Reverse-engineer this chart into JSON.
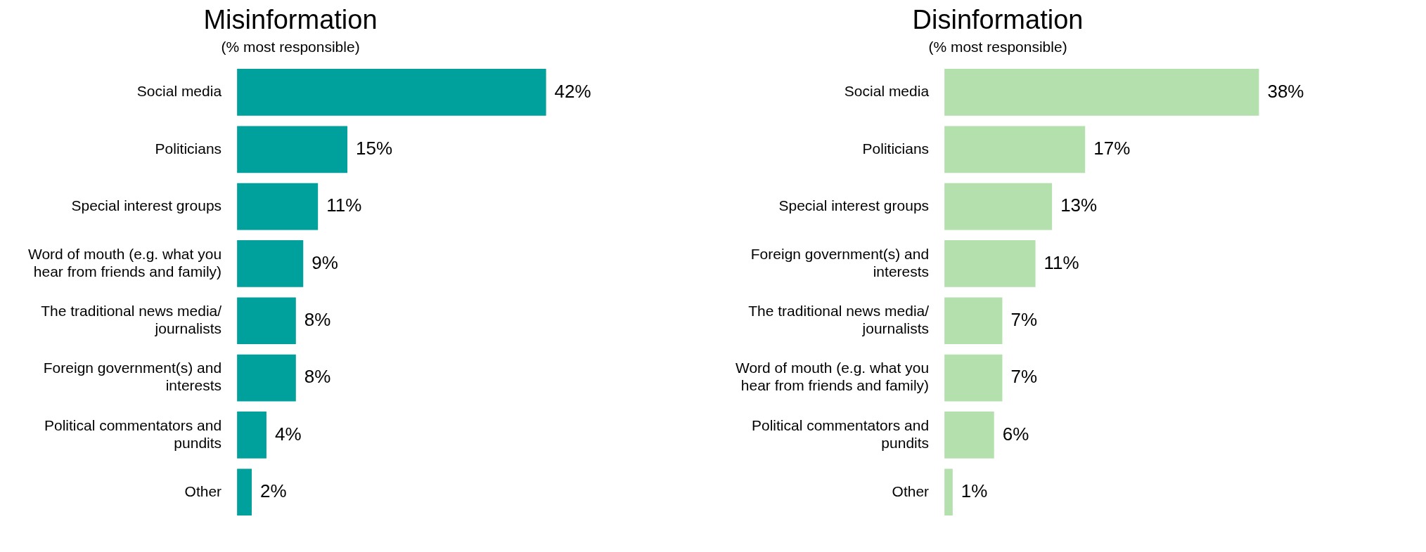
{
  "chart_data": [
    {
      "type": "bar",
      "orientation": "horizontal",
      "title": "Misinformation",
      "subtitle": "(% most responsible)",
      "categories": [
        "Social media",
        "Politicians",
        "Special interest groups",
        "Word of mouth (e.g. what you hear from friends and family)",
        "The traditional news media/journalists",
        "Foreign government(s) and interests",
        "Political commentators and pundits",
        "Other"
      ],
      "values": [
        42,
        15,
        11,
        9,
        8,
        8,
        4,
        2
      ],
      "value_labels": [
        "42%",
        "15%",
        "11%",
        "9%",
        "8%",
        "8%",
        "4%",
        "2%"
      ],
      "color": "#00a09d",
      "tick_labels": "y"
    },
    {
      "type": "bar",
      "orientation": "horizontal",
      "title": "Disinformation",
      "subtitle": "(% most responsible)",
      "categories": [
        "Social media",
        "Politicians",
        "Special interest groups",
        "Foreign government(s) and interests",
        "The traditional news media/journalists",
        "Word of mouth (e.g. what you hear from friends and family)",
        "Political commentators and pundits",
        "Other"
      ],
      "values": [
        38,
        17,
        13,
        11,
        7,
        7,
        6,
        1
      ],
      "value_labels": [
        "38%",
        "17%",
        "13%",
        "11%",
        "7%",
        "7%",
        "6%",
        "1%"
      ],
      "color": "#b3e0ad",
      "tick_labels": "y"
    }
  ]
}
